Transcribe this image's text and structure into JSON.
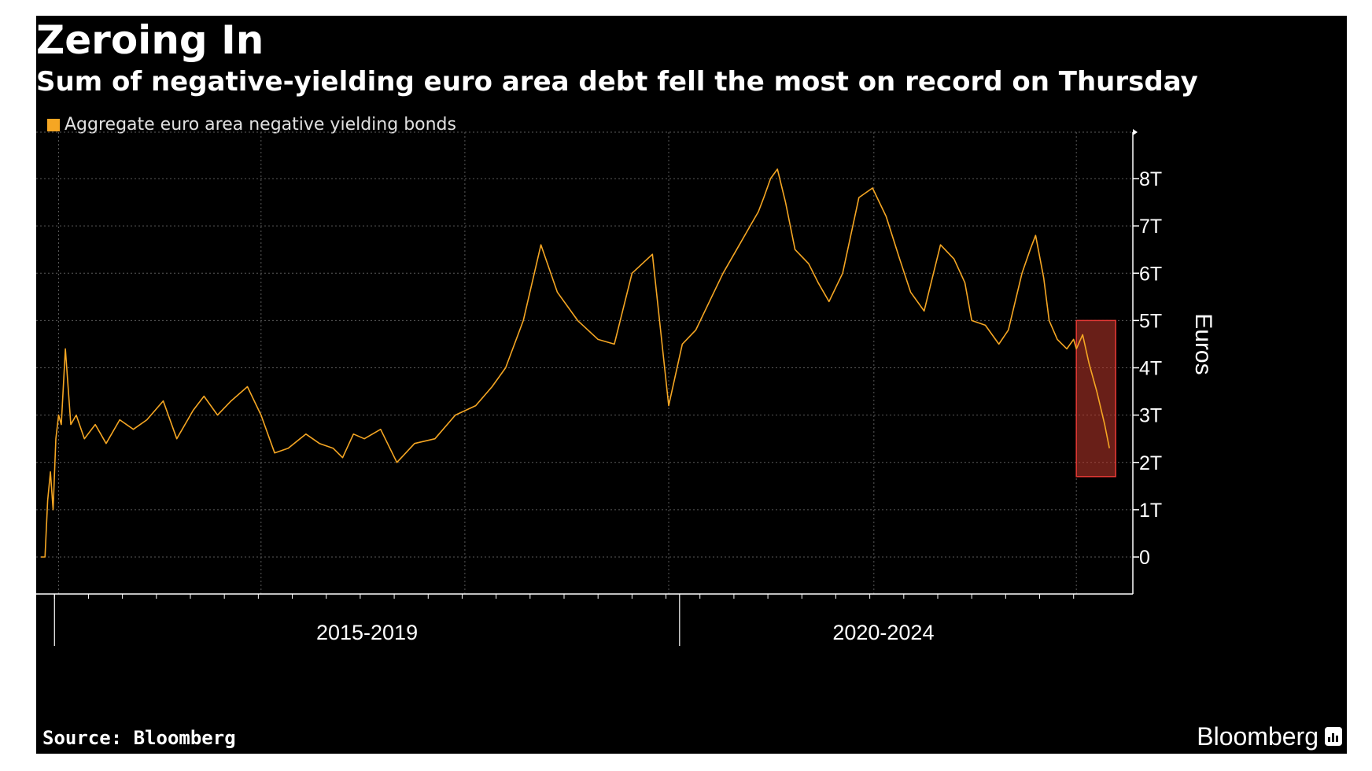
{
  "chart_data": {
    "type": "line",
    "title": "Zeroing In",
    "subtitle": "Sum of negative-yielding euro area debt fell the most on record on Thursday",
    "legend": {
      "placement": "top-left",
      "entries": [
        {
          "name": "Aggregate euro area negative yielding bonds",
          "color": "#f5a623"
        }
      ]
    },
    "source": "Source: Bloomberg",
    "brand": "Bloomberg",
    "ylabel": "Euros",
    "yticks": [
      "0",
      "1T",
      "2T",
      "3T",
      "4T",
      "5T",
      "6T",
      "7T",
      "8T"
    ],
    "ylim": [
      -0.8,
      9.0
    ],
    "grid": true,
    "xlim": [
      2014.3,
      2022.0
    ],
    "x_groups": [
      {
        "label": "2015-2019",
        "start": 2014.4,
        "end": 2019.0
      },
      {
        "label": "2020-2024",
        "start": 2019.0,
        "end": 2022.0
      }
    ],
    "x_gridlines": [
      2014.43,
      2015.92,
      2017.42,
      2018.92,
      2020.43,
      2021.92
    ],
    "highlight": {
      "x": [
        2021.92,
        2022.17
      ],
      "y": [
        1.7,
        5.0
      ],
      "color": "#c0392b"
    },
    "series": [
      {
        "name": "Aggregate euro area negative yielding bonds",
        "color": "#f5a623",
        "x": [
          2014.3,
          2014.33,
          2014.35,
          2014.37,
          2014.39,
          2014.41,
          2014.43,
          2014.45,
          2014.48,
          2014.52,
          2014.56,
          2014.62,
          2014.7,
          2014.78,
          2014.88,
          2014.98,
          2015.08,
          2015.2,
          2015.3,
          2015.42,
          2015.5,
          2015.6,
          2015.7,
          2015.82,
          2015.92,
          2016.02,
          2016.12,
          2016.25,
          2016.35,
          2016.45,
          2016.52,
          2016.6,
          2016.68,
          2016.8,
          2016.92,
          2017.05,
          2017.2,
          2017.35,
          2017.5,
          2017.62,
          2017.72,
          2017.85,
          2017.98,
          2018.1,
          2018.25,
          2018.4,
          2018.52,
          2018.65,
          2018.8,
          2018.92,
          2019.02,
          2019.12,
          2019.22,
          2019.32,
          2019.42,
          2019.52,
          2019.58,
          2019.62,
          2019.67,
          2019.72,
          2019.78,
          2019.85,
          2019.95,
          2020.02,
          2020.1,
          2020.2,
          2020.32,
          2020.42,
          2020.52,
          2020.62,
          2020.7,
          2020.8,
          2020.92,
          2021.02,
          2021.1,
          2021.15,
          2021.25,
          2021.35,
          2021.42,
          2021.52,
          2021.58,
          2021.62,
          2021.68,
          2021.72,
          2021.78,
          2021.85,
          2021.9,
          2021.92,
          2021.96,
          2022.0,
          2022.05,
          2022.1,
          2022.13
        ],
        "values": [
          0.0,
          0.0,
          1.2,
          1.8,
          1.0,
          2.5,
          3.0,
          2.8,
          4.4,
          2.8,
          3.0,
          2.5,
          2.8,
          2.4,
          2.9,
          2.7,
          2.9,
          3.3,
          2.5,
          3.1,
          3.4,
          3.0,
          3.3,
          3.6,
          3.0,
          2.2,
          2.3,
          2.6,
          2.4,
          2.3,
          2.1,
          2.6,
          2.5,
          2.7,
          2.0,
          2.4,
          2.5,
          3.0,
          3.2,
          3.6,
          4.0,
          5.0,
          6.6,
          5.6,
          5.0,
          4.6,
          4.5,
          6.0,
          6.4,
          3.2,
          4.5,
          4.8,
          5.4,
          6.0,
          6.5,
          7.0,
          7.3,
          7.6,
          8.0,
          8.2,
          7.5,
          6.5,
          6.2,
          5.8,
          5.4,
          6.0,
          7.6,
          7.8,
          7.2,
          6.3,
          5.6,
          5.2,
          6.6,
          6.3,
          5.8,
          5.0,
          4.9,
          4.5,
          4.8,
          6.0,
          6.5,
          6.8,
          5.9,
          5.0,
          4.6,
          4.4,
          4.6,
          4.4,
          4.7,
          4.1,
          3.5,
          2.8,
          2.3
        ]
      }
    ]
  }
}
